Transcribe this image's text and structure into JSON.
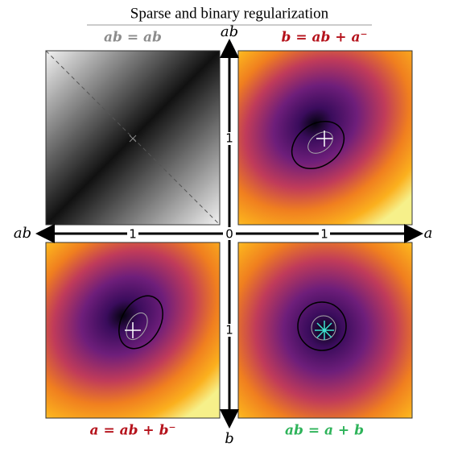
{
  "title": "Sparse and binary regularization",
  "panels": [
    {
      "label": "ab = ab",
      "color": "#8c8c8c"
    },
    {
      "label": "b = ab + a⁻",
      "color": "#b5121b"
    },
    {
      "label": "a = ab + b⁻",
      "color": "#b5121b"
    },
    {
      "label": "ab = a + b",
      "color": "#2eb35a"
    }
  ],
  "axes": {
    "top": "ab",
    "bottom": "b",
    "left": "ab",
    "right": "a"
  },
  "ticks": {
    "left": "1",
    "origin": "0",
    "right": "1",
    "up": "1",
    "down": "1"
  }
}
